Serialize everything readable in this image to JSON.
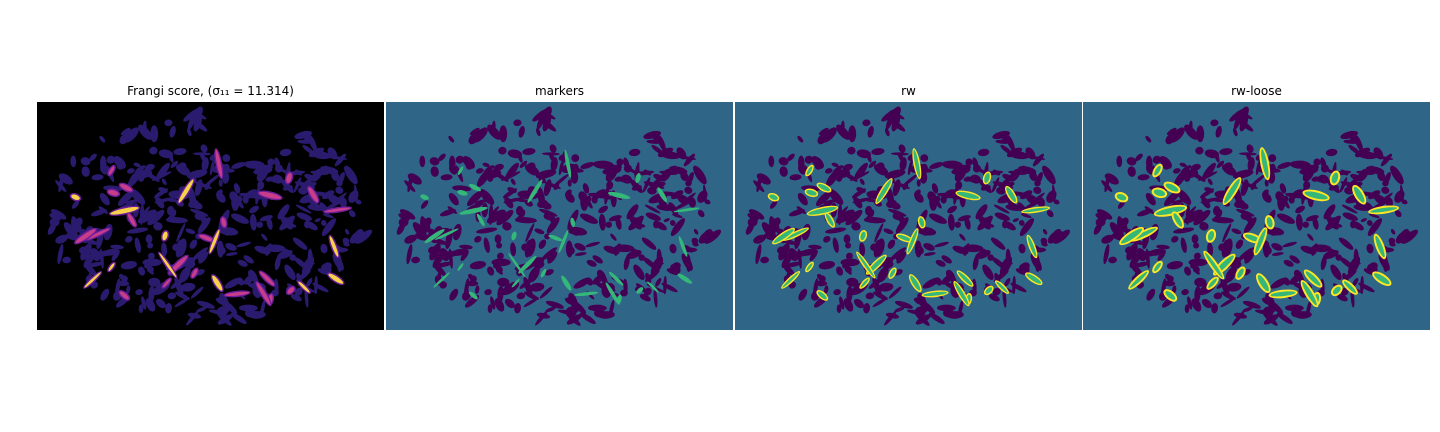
{
  "panels": [
    {
      "title": "Frangi score, ",
      "math": "(σ₁₁ = 11.314)"
    },
    {
      "title": "markers"
    },
    {
      "title": "rw"
    },
    {
      "title": "rw-loose"
    }
  ],
  "colors": {
    "panel1_bg": "#000000",
    "panel1_tissue": "#2a1b6e",
    "panel1_vessel_hi": "#f7d34a",
    "panel1_vessel_mid": "#c83d8a",
    "panel1_vessel_lo": "#6b1d9a",
    "seg_bg": "#2f6688",
    "seg_tissue": "#440154",
    "marker_green": "#35b779",
    "edge_yellow": "#fde725"
  }
}
